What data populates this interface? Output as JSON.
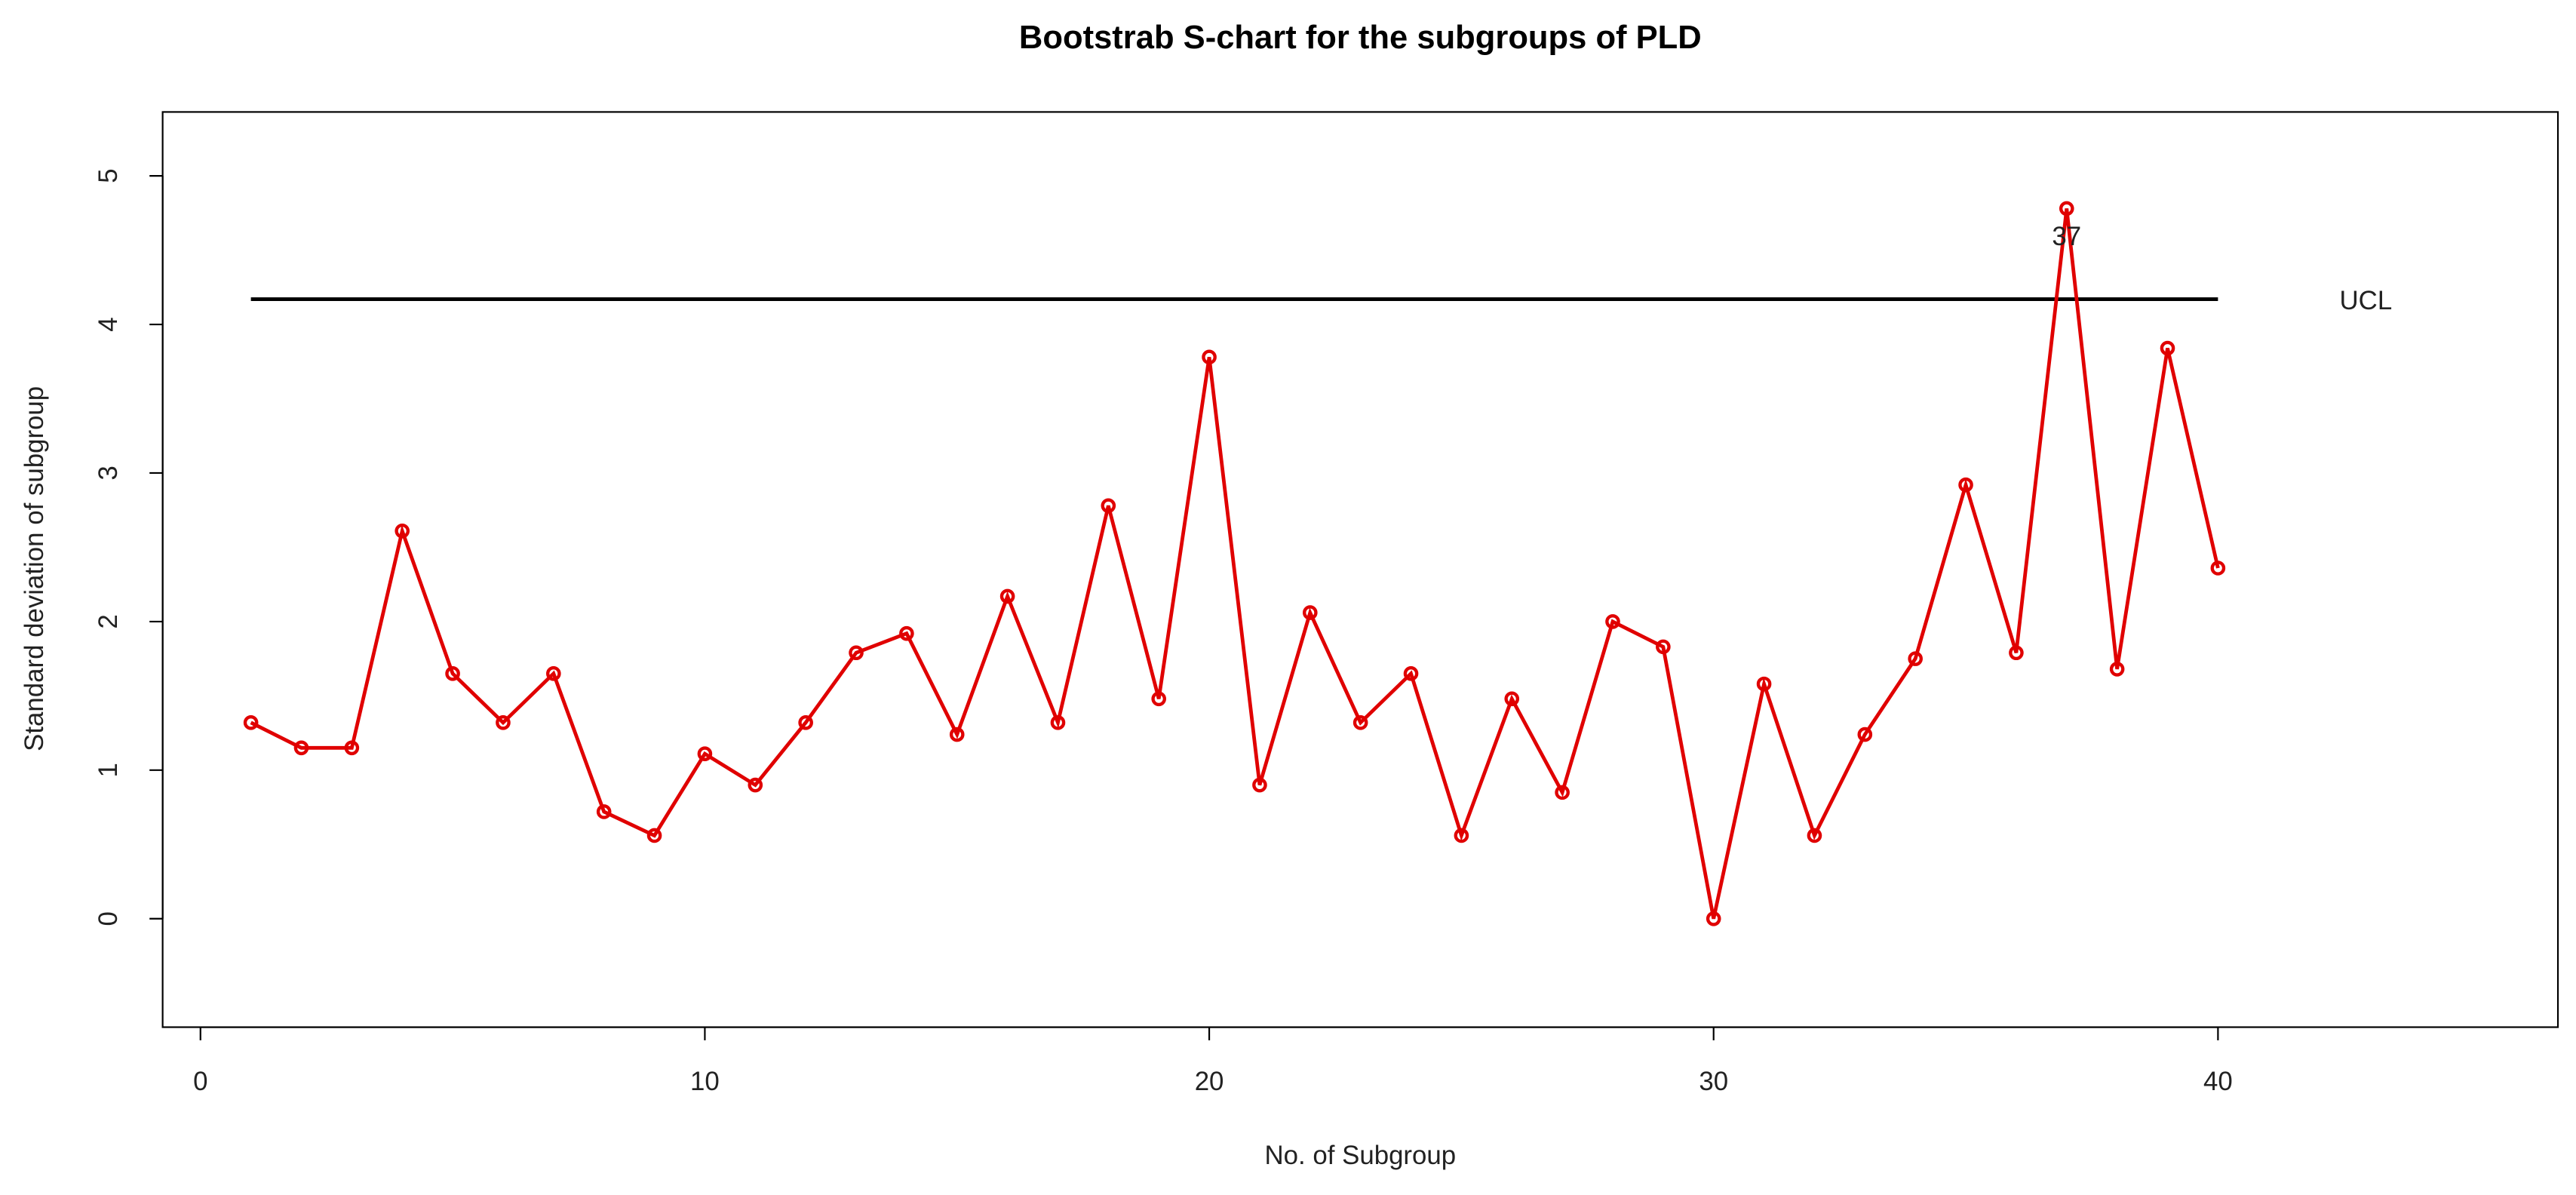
{
  "chart_data": {
    "type": "line",
    "title": "Bootstrab S-chart for the subgroups of PLD",
    "x_label": "No. of Subgroup",
    "y_label": "Standard deviation of subgroup",
    "x": [
      1,
      2,
      3,
      4,
      5,
      6,
      7,
      8,
      9,
      10,
      11,
      12,
      13,
      14,
      15,
      16,
      17,
      18,
      19,
      20,
      21,
      22,
      23,
      24,
      25,
      26,
      27,
      28,
      29,
      30,
      31,
      32,
      33,
      34,
      35,
      36,
      37,
      38,
      39,
      40
    ],
    "series": [
      {
        "color": "#e00000",
        "values": [
          1.32,
          1.15,
          1.15,
          2.61,
          1.65,
          1.32,
          1.65,
          0.72,
          0.56,
          1.11,
          0.9,
          1.32,
          1.79,
          1.92,
          1.24,
          2.17,
          1.32,
          2.78,
          1.48,
          3.78,
          0.9,
          2.06,
          1.32,
          1.65,
          0.56,
          1.48,
          0.85,
          2.0,
          1.83,
          0,
          1.58,
          0.56,
          1.24,
          1.75,
          2.92,
          1.79,
          4.78,
          1.68,
          3.84,
          2.36
        ]
      }
    ],
    "ucl": {
      "label": "UCL",
      "value": 4.17,
      "x": [
        1,
        40
      ],
      "color": "#000000"
    },
    "annotations": [
      {
        "text": "37",
        "x": 37
      }
    ],
    "xlim": [
      -0.75,
      46.74
    ],
    "ylim": [
      -0.73,
      5.43
    ],
    "xticks": [
      0,
      10,
      20,
      30,
      40
    ],
    "yticks": [
      0,
      1,
      2,
      3,
      4,
      5
    ],
    "grid": false
  }
}
